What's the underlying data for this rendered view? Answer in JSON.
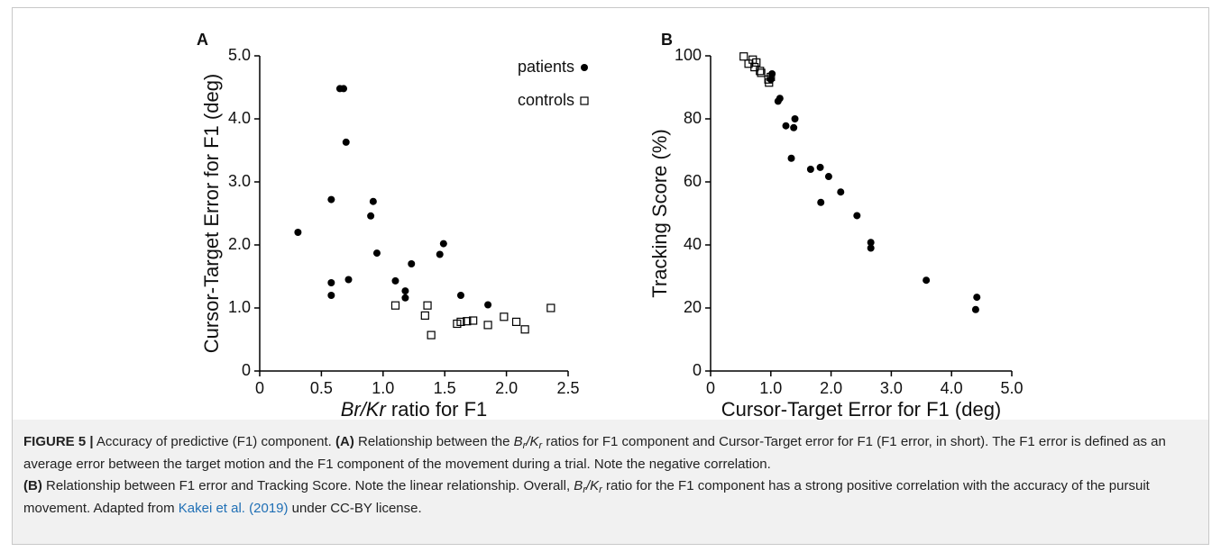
{
  "chart_data": [
    {
      "type": "scatter",
      "panel_label": "A",
      "xlabel": [
        {
          "text": "Br/Kr",
          "style": "italic"
        },
        {
          "text": " ratio for F1",
          "style": "normal"
        }
      ],
      "ylabel": "Cursor-Target Error for F1 (deg)",
      "xlim": [
        0,
        2.5
      ],
      "xticks": [
        0,
        0.5,
        {
          "value": 1,
          "label": "1.0"
        },
        1.5,
        {
          "value": 2,
          "label": "2.0"
        },
        2.5
      ],
      "ylim": [
        0,
        5
      ],
      "yticks": [
        0,
        {
          "value": 1,
          "label": "1.0"
        },
        {
          "value": 2,
          "label": "2.0"
        },
        {
          "value": 3,
          "label": "3.0"
        },
        {
          "value": 4,
          "label": "4.0"
        },
        {
          "value": 5,
          "label": "5.0"
        }
      ],
      "legend": "upper right",
      "series": [
        {
          "name": "patients",
          "color": "#000000",
          "marker": "circle",
          "x": [
            0.31,
            0.58,
            0.58,
            0.58,
            0.65,
            0.68,
            0.7,
            0.72,
            0.9,
            0.92,
            0.95,
            1.1,
            1.18,
            1.18,
            1.23,
            1.46,
            1.49,
            1.63,
            1.85
          ],
          "y": [
            2.2,
            2.72,
            1.4,
            1.2,
            4.48,
            4.48,
            3.63,
            1.45,
            2.46,
            2.69,
            1.87,
            1.43,
            1.27,
            1.16,
            1.7,
            1.85,
            2.02,
            1.2,
            1.05
          ]
        },
        {
          "name": "controls",
          "color": "#000000",
          "marker": "open-square",
          "x": [
            1.1,
            1.34,
            1.36,
            1.39,
            1.6,
            1.63,
            1.68,
            1.73,
            1.85,
            1.98,
            2.08,
            2.15,
            2.36
          ],
          "y": [
            1.04,
            0.88,
            1.04,
            0.57,
            0.75,
            0.78,
            0.79,
            0.8,
            0.73,
            0.86,
            0.78,
            0.66,
            1.0
          ]
        }
      ]
    },
    {
      "type": "scatter",
      "panel_label": "B",
      "xlabel": [
        {
          "text": "Cursor-Target Error for F1 (deg)",
          "style": "normal"
        }
      ],
      "ylabel": "Tracking Score (%)",
      "xlim": [
        0,
        5
      ],
      "xticks": [
        0,
        {
          "value": 1,
          "label": "1.0"
        },
        {
          "value": 2,
          "label": "2.0"
        },
        {
          "value": 3,
          "label": "3.0"
        },
        {
          "value": 4,
          "label": "4.0"
        },
        {
          "value": 5,
          "label": "5.0"
        }
      ],
      "ylim": [
        0,
        100
      ],
      "yticks": [
        0,
        20,
        40,
        60,
        80,
        100
      ],
      "series": [
        {
          "name": "patients",
          "color": "#000000",
          "marker": "circle",
          "x": [
            4.4,
            4.42,
            3.58,
            2.66,
            2.66,
            2.43,
            2.16,
            1.96,
            1.83,
            1.82,
            1.66,
            1.4,
            1.38,
            1.34,
            1.25,
            1.15,
            1.12,
            1.02,
            1.0
          ],
          "y": [
            19.5,
            23.4,
            28.8,
            39.0,
            40.8,
            49.3,
            56.8,
            61.7,
            53.5,
            64.6,
            64.0,
            80.0,
            77.2,
            67.5,
            77.8,
            86.5,
            85.6,
            94.3,
            92.5
          ]
        },
        {
          "name": "controls",
          "color": "#000000",
          "marker": "open-square",
          "x": [
            0.55,
            0.63,
            0.7,
            0.73,
            0.76,
            0.82,
            0.84,
            0.97,
            1.0,
            0.96
          ],
          "y": [
            99.8,
            97.5,
            98.8,
            96.4,
            97.9,
            95.2,
            94.6,
            91.5,
            93.3,
            92.5
          ]
        }
      ]
    }
  ],
  "caption": [
    [
      {
        "text": "FIGURE 5 |",
        "style": "bold"
      },
      {
        "text": " Accuracy of predictive (F1) component. ",
        "style": "normal"
      },
      {
        "text": "(A)",
        "style": "bold"
      },
      {
        "text": " Relationship between the ",
        "style": "normal"
      },
      {
        "text": "B",
        "style": "italic"
      },
      {
        "text": "r",
        "style": "sub"
      },
      {
        "text": "/",
        "style": "italic"
      },
      {
        "text": "K",
        "style": "italic"
      },
      {
        "text": "r",
        "style": "sub"
      },
      {
        "text": " ratios for F1 component and Cursor-Target error for F1 (F1 error, in short). The F1 error is defined as an average error between the target motion and the F1 component of the movement during a trial. Note the negative correlation.",
        "style": "normal"
      }
    ],
    [
      {
        "text": "(B)",
        "style": "bold"
      },
      {
        "text": " Relationship between F1 error and Tracking Score. Note the linear relationship. Overall, ",
        "style": "normal"
      },
      {
        "text": "B",
        "style": "italic"
      },
      {
        "text": "r",
        "style": "sub"
      },
      {
        "text": "/",
        "style": "italic"
      },
      {
        "text": "K",
        "style": "italic"
      },
      {
        "text": "r",
        "style": "sub"
      },
      {
        "text": " ratio for the F1 component has a strong positive correlation with the accuracy of the pursuit movement. Adapted from ",
        "style": "normal"
      },
      {
        "text": "Kakei et al. (2019)",
        "style": "link"
      },
      {
        "text": " under CC-BY license.",
        "style": "normal"
      }
    ]
  ]
}
